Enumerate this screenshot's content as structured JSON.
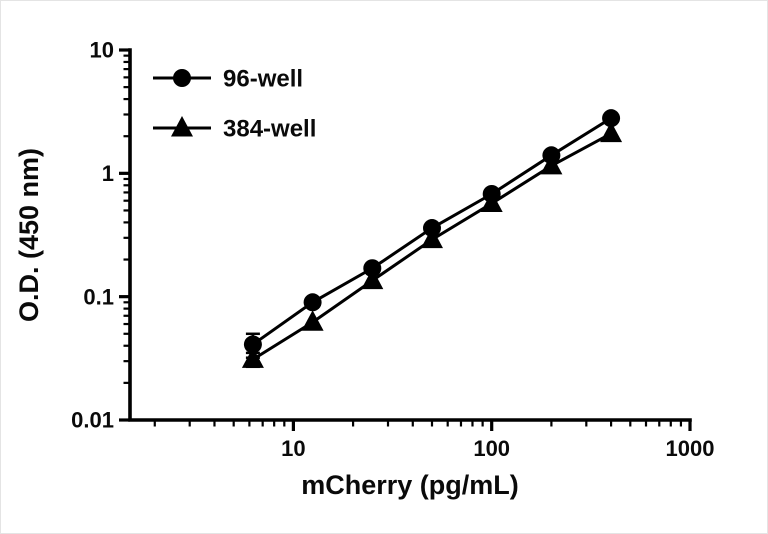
{
  "figure": {
    "background": "#ffffff",
    "foreground": "#000000"
  },
  "chart_data": {
    "type": "scatter-line",
    "scale": "log-log",
    "title": "",
    "xlabel": "mCherry (pg/mL)",
    "ylabel": "O.D. (450 nm)",
    "xlim": [
      1.5,
      1000
    ],
    "ylim": [
      0.01,
      10
    ],
    "x_ticks": [
      10,
      100,
      1000
    ],
    "x_tick_labels": [
      "10",
      "100",
      "1000"
    ],
    "y_ticks": [
      0.01,
      0.1,
      1,
      10
    ],
    "y_tick_labels": [
      "0.01",
      "0.1",
      "1",
      "10"
    ],
    "grid": false,
    "legend_position": "top-left-inside",
    "x": [
      6.25,
      12.5,
      25,
      50,
      100,
      200,
      400
    ],
    "series": [
      {
        "name": "96-well",
        "marker": "circle",
        "color": "#000000",
        "values": [
          0.041,
          0.09,
          0.17,
          0.36,
          0.68,
          1.4,
          2.8
        ],
        "errors": [
          0.009,
          0.004,
          0,
          0,
          0,
          0,
          0
        ]
      },
      {
        "name": "384-well",
        "marker": "triangle",
        "color": "#000000",
        "values": [
          0.031,
          0.062,
          0.135,
          0.29,
          0.57,
          1.15,
          2.1
        ],
        "errors": [
          0.004,
          0,
          0,
          0,
          0,
          0,
          0
        ]
      }
    ]
  }
}
